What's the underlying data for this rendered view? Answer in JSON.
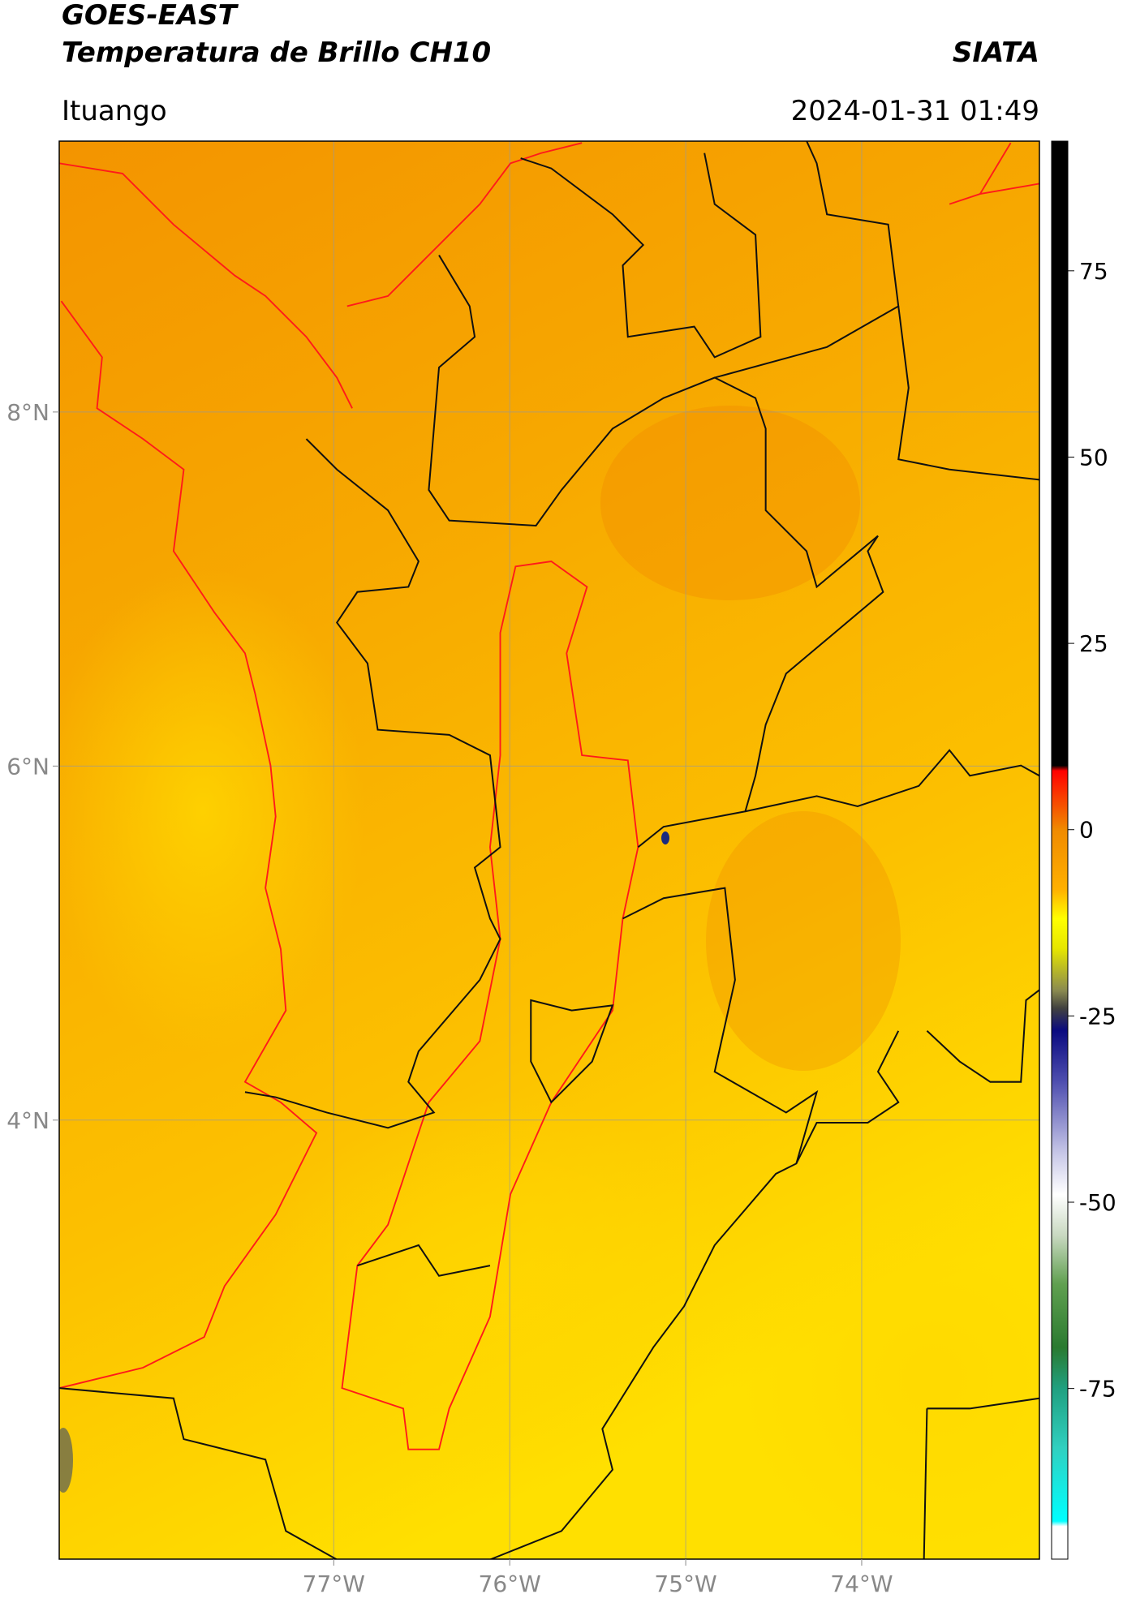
{
  "header": {
    "title": "GOES-EAST",
    "subtitle": "Temperatura de Brillo CH10",
    "source": "SIATA",
    "location": "Ituango",
    "datetime": "2024-01-31 01:49"
  },
  "map": {
    "lon_range": [
      -78.56,
      -72.99
    ],
    "lat_range": [
      1.52,
      9.53
    ],
    "lon_ticks": [
      {
        "value": -77,
        "label": "77°W"
      },
      {
        "value": -76,
        "label": "76°W"
      },
      {
        "value": -75,
        "label": "75°W"
      },
      {
        "value": -74,
        "label": "74°W"
      }
    ],
    "lat_ticks": [
      {
        "value": 8,
        "label": "8°N"
      },
      {
        "value": 6,
        "label": "6°N"
      },
      {
        "value": 4,
        "label": "4°N"
      }
    ]
  },
  "colorbar": {
    "range": [
      -97.9,
      92.4
    ],
    "ticks": [
      75,
      50,
      25,
      0,
      -25,
      -50,
      -75
    ],
    "stops": [
      {
        "value": 8.6,
        "color": "#000000"
      },
      {
        "value": 7.9,
        "color": "#ff0000"
      },
      {
        "value": 0,
        "color": "#f08a00"
      },
      {
        "value": -8,
        "color": "#ffb000"
      },
      {
        "value": -12,
        "color": "#ffff00"
      },
      {
        "value": -16,
        "color": "#e6e600"
      },
      {
        "value": -21.6,
        "color": "#8a8a50"
      },
      {
        "value": -24,
        "color": "#404040"
      },
      {
        "value": -27,
        "color": "#0a0a80"
      },
      {
        "value": -34,
        "color": "#5050b0"
      },
      {
        "value": -43.5,
        "color": "#c8c8e8"
      },
      {
        "value": -49,
        "color": "#ffffff"
      },
      {
        "value": -54.5,
        "color": "#c8d8c0"
      },
      {
        "value": -61,
        "color": "#60a050"
      },
      {
        "value": -69.5,
        "color": "#2a7a30"
      },
      {
        "value": -75,
        "color": "#20a080"
      },
      {
        "value": -83,
        "color": "#30d0c0"
      },
      {
        "value": -92.8,
        "color": "#00ffff"
      },
      {
        "value": -93.5,
        "color": "#ffffff"
      }
    ]
  }
}
